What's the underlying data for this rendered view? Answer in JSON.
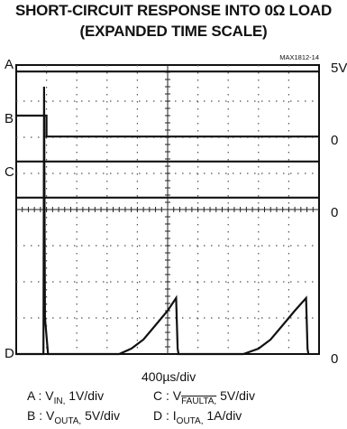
{
  "title_line1": "SHORT-CIRCUIT RESPONSE INTO 0Ω LOAD",
  "title_line2": "(EXPANDED TIME SCALE)",
  "figure_id": "MAX1812-14",
  "chart_data": {
    "type": "line",
    "title": "SHORT-CIRCUIT RESPONSE INTO 0Ω LOAD (EXPANDED TIME SCALE)",
    "time_scale": "400µs/div",
    "x_divisions": 10,
    "y_divisions": 8,
    "grid": true,
    "channels": [
      {
        "id": "A",
        "signal": "V_IN",
        "scale": "1V/div",
        "right_label": "5V",
        "ground_div": 7.82,
        "trace": [
          [
            0,
            7.82
          ],
          [
            10,
            7.82
          ]
        ]
      },
      {
        "id": "B",
        "signal": "V_OUTA",
        "scale": "5V/div",
        "right_label": "0",
        "ground_div": 6.02,
        "trace": [
          [
            0,
            6.6
          ],
          [
            1.0,
            6.6
          ],
          [
            1.0,
            6.02
          ],
          [
            10,
            6.02
          ]
        ]
      },
      {
        "id": "C",
        "signal": "V_FAULTA",
        "scale": "5V/div",
        "right_label": "0",
        "ground_div": 5.33,
        "trace": [
          [
            0,
            5.33
          ],
          [
            10,
            5.33
          ]
        ]
      },
      {
        "id": "C2",
        "signal": "",
        "scale": "",
        "right_label": "0",
        "ground_div": 4.33,
        "trace": [
          [
            0,
            4.33
          ],
          [
            10,
            4.33
          ]
        ]
      },
      {
        "id": "D",
        "signal": "I_OUTA",
        "scale": "1A/div",
        "right_label": "0",
        "ground_div": 0.0,
        "trace": [
          [
            0,
            0
          ],
          [
            0.9,
            0
          ],
          [
            0.92,
            7.4
          ],
          [
            0.95,
            1.0
          ],
          [
            1.05,
            0.0
          ],
          [
            3.4,
            0
          ],
          [
            3.8,
            0.15
          ],
          [
            4.2,
            0.4
          ],
          [
            4.6,
            0.8
          ],
          [
            5.0,
            1.2
          ],
          [
            5.28,
            1.55
          ],
          [
            5.33,
            0.15
          ],
          [
            5.36,
            0
          ],
          [
            7.5,
            0
          ],
          [
            8.0,
            0.15
          ],
          [
            8.4,
            0.4
          ],
          [
            8.8,
            0.8
          ],
          [
            9.2,
            1.2
          ],
          [
            9.57,
            1.55
          ],
          [
            9.62,
            0.15
          ],
          [
            9.65,
            0
          ]
        ]
      }
    ]
  },
  "legend": {
    "time": "400µs/div",
    "a_prefix": "A : V",
    "a_sub": "IN,",
    "a_scale": " 1V/div",
    "b_prefix": "B : V",
    "b_sub": "OUTA,",
    "b_scale": " 5V/div",
    "c_prefix": "C : V",
    "c_sub": "FAULTA,",
    "c_scale": " 5V/div",
    "d_prefix": "D : I",
    "d_sub": "OUTA,",
    "d_scale": " 1A/div"
  }
}
